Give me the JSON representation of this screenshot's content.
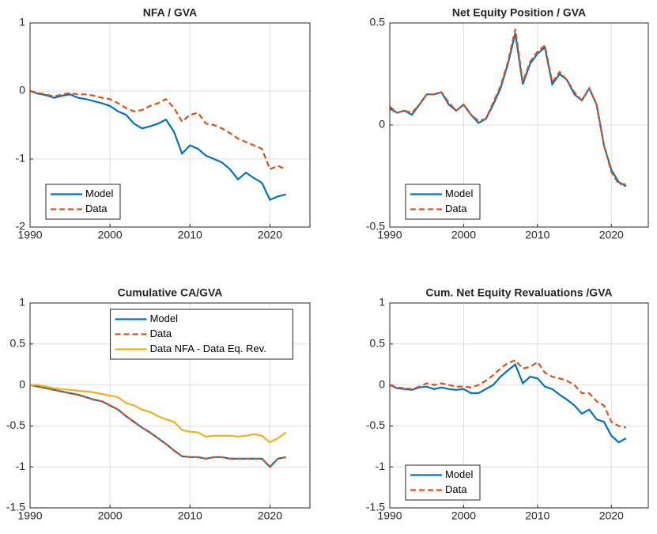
{
  "chart_data": [
    {
      "type": "line",
      "title": "NFA / GVA",
      "legend": "southwest",
      "grid": true,
      "xlim": [
        1990,
        2025
      ],
      "xticks": [
        1990,
        2000,
        2010,
        2020
      ],
      "ylim": [
        -2,
        1
      ],
      "yticks": [
        -2,
        -1,
        0,
        1
      ],
      "x": [
        1990,
        1991,
        1992,
        1993,
        1994,
        1995,
        1996,
        1997,
        1998,
        1999,
        2000,
        2001,
        2002,
        2003,
        2004,
        2005,
        2006,
        2007,
        2008,
        2009,
        2010,
        2011,
        2012,
        2013,
        2014,
        2015,
        2016,
        2017,
        2018,
        2019,
        2020,
        2021,
        2022
      ],
      "series": [
        {
          "name": "Model",
          "color": "#0072BD",
          "dash": false,
          "values": [
            0,
            -0.04,
            -0.06,
            -0.1,
            -0.07,
            -0.05,
            -0.1,
            -0.12,
            -0.15,
            -0.18,
            -0.22,
            -0.3,
            -0.35,
            -0.48,
            -0.55,
            -0.52,
            -0.48,
            -0.42,
            -0.6,
            -0.92,
            -0.8,
            -0.85,
            -0.95,
            -1.0,
            -1.05,
            -1.15,
            -1.3,
            -1.2,
            -1.28,
            -1.35,
            -1.6,
            -1.55,
            -1.52
          ]
        },
        {
          "name": "Data",
          "color": "#D95319",
          "dash": true,
          "values": [
            0,
            -0.03,
            -0.05,
            -0.08,
            -0.05,
            -0.03,
            -0.05,
            -0.05,
            -0.07,
            -0.1,
            -0.12,
            -0.18,
            -0.25,
            -0.3,
            -0.28,
            -0.22,
            -0.18,
            -0.12,
            -0.25,
            -0.45,
            -0.35,
            -0.32,
            -0.48,
            -0.5,
            -0.55,
            -0.62,
            -0.7,
            -0.75,
            -0.8,
            -0.85,
            -1.15,
            -1.1,
            -1.15
          ]
        }
      ]
    },
    {
      "type": "line",
      "title": "Net Equity Position / GVA",
      "legend": "southwest",
      "grid": true,
      "xlim": [
        1990,
        2025
      ],
      "xticks": [
        1990,
        2000,
        2010,
        2020
      ],
      "ylim": [
        -0.5,
        0.5
      ],
      "yticks": [
        -0.5,
        0,
        0.5
      ],
      "x": [
        1990,
        1991,
        1992,
        1993,
        1994,
        1995,
        1996,
        1997,
        1998,
        1999,
        2000,
        2001,
        2002,
        2003,
        2004,
        2005,
        2006,
        2007,
        2008,
        2009,
        2010,
        2011,
        2012,
        2013,
        2014,
        2015,
        2016,
        2017,
        2018,
        2019,
        2020,
        2021,
        2022
      ],
      "series": [
        {
          "name": "Model",
          "color": "#0072BD",
          "dash": false,
          "values": [
            0.08,
            0.06,
            0.07,
            0.05,
            0.1,
            0.15,
            0.15,
            0.16,
            0.1,
            0.07,
            0.1,
            0.05,
            0.01,
            0.03,
            0.1,
            0.18,
            0.3,
            0.45,
            0.2,
            0.3,
            0.35,
            0.38,
            0.2,
            0.25,
            0.22,
            0.15,
            0.12,
            0.18,
            0.1,
            -0.1,
            -0.22,
            -0.28,
            -0.3
          ]
        },
        {
          "name": "Data",
          "color": "#D95319",
          "dash": true,
          "values": [
            0.09,
            0.06,
            0.07,
            0.06,
            0.1,
            0.15,
            0.15,
            0.16,
            0.11,
            0.07,
            0.1,
            0.05,
            0.02,
            0.03,
            0.11,
            0.19,
            0.31,
            0.47,
            0.21,
            0.31,
            0.36,
            0.39,
            0.21,
            0.26,
            0.22,
            0.16,
            0.12,
            0.18,
            0.1,
            -0.1,
            -0.23,
            -0.29,
            -0.29
          ]
        }
      ]
    },
    {
      "type": "line",
      "title": "Cumulative CA/GVA",
      "legend": "north",
      "grid": true,
      "xlim": [
        1990,
        2025
      ],
      "xticks": [
        1990,
        2000,
        2010,
        2020
      ],
      "ylim": [
        -1.5,
        1
      ],
      "yticks": [
        -1.5,
        -1,
        -0.5,
        0,
        0.5,
        1
      ],
      "x": [
        1990,
        1991,
        1992,
        1993,
        1994,
        1995,
        1996,
        1997,
        1998,
        1999,
        2000,
        2001,
        2002,
        2003,
        2004,
        2005,
        2006,
        2007,
        2008,
        2009,
        2010,
        2011,
        2012,
        2013,
        2014,
        2015,
        2016,
        2017,
        2018,
        2019,
        2020,
        2021,
        2022
      ],
      "series": [
        {
          "name": "Model",
          "color": "#0072BD",
          "dash": false,
          "values": [
            0,
            -0.02,
            -0.04,
            -0.06,
            -0.08,
            -0.1,
            -0.12,
            -0.15,
            -0.18,
            -0.2,
            -0.25,
            -0.3,
            -0.38,
            -0.45,
            -0.52,
            -0.58,
            -0.65,
            -0.72,
            -0.8,
            -0.87,
            -0.88,
            -0.88,
            -0.9,
            -0.88,
            -0.88,
            -0.9,
            -0.9,
            -0.9,
            -0.9,
            -0.9,
            -1.0,
            -0.9,
            -0.88
          ]
        },
        {
          "name": "Data",
          "color": "#D95319",
          "dash": true,
          "values": [
            0,
            -0.02,
            -0.04,
            -0.06,
            -0.08,
            -0.1,
            -0.12,
            -0.15,
            -0.18,
            -0.2,
            -0.25,
            -0.3,
            -0.38,
            -0.45,
            -0.52,
            -0.58,
            -0.65,
            -0.72,
            -0.8,
            -0.87,
            -0.88,
            -0.88,
            -0.9,
            -0.88,
            -0.88,
            -0.9,
            -0.9,
            -0.9,
            -0.9,
            -0.9,
            -1.0,
            -0.9,
            -0.88
          ]
        },
        {
          "name": "Data NFA - Data Eq. Rev.",
          "color": "#EDB120",
          "dash": false,
          "values": [
            0,
            0,
            -0.02,
            -0.04,
            -0.05,
            -0.06,
            -0.07,
            -0.08,
            -0.09,
            -0.11,
            -0.13,
            -0.15,
            -0.22,
            -0.25,
            -0.3,
            -0.33,
            -0.38,
            -0.42,
            -0.45,
            -0.55,
            -0.57,
            -0.58,
            -0.63,
            -0.62,
            -0.62,
            -0.62,
            -0.63,
            -0.62,
            -0.6,
            -0.62,
            -0.7,
            -0.65,
            -0.58
          ]
        }
      ]
    },
    {
      "type": "line",
      "title": "Cum. Net Equity Revaluations /GVA",
      "legend": "southwest",
      "grid": true,
      "xlim": [
        1990,
        2025
      ],
      "xticks": [
        1990,
        2000,
        2010,
        2020
      ],
      "ylim": [
        -1.5,
        1
      ],
      "yticks": [
        -1.5,
        -1,
        -0.5,
        0,
        0.5,
        1
      ],
      "x": [
        1990,
        1991,
        1992,
        1993,
        1994,
        1995,
        1996,
        1997,
        1998,
        1999,
        2000,
        2001,
        2002,
        2003,
        2004,
        2005,
        2006,
        2007,
        2008,
        2009,
        2010,
        2011,
        2012,
        2013,
        2014,
        2015,
        2016,
        2017,
        2018,
        2019,
        2020,
        2021,
        2022
      ],
      "series": [
        {
          "name": "Model",
          "color": "#0072BD",
          "dash": false,
          "values": [
            0,
            -0.04,
            -0.05,
            -0.06,
            -0.03,
            -0.02,
            -0.05,
            -0.03,
            -0.05,
            -0.06,
            -0.05,
            -0.1,
            -0.1,
            -0.05,
            0,
            0.1,
            0.18,
            0.25,
            0.02,
            0.1,
            0.08,
            -0.02,
            -0.05,
            -0.12,
            -0.18,
            -0.25,
            -0.35,
            -0.3,
            -0.42,
            -0.45,
            -0.62,
            -0.7,
            -0.65
          ]
        },
        {
          "name": "Data",
          "color": "#D95319",
          "dash": true,
          "values": [
            0,
            -0.03,
            -0.04,
            -0.05,
            -0.02,
            0.02,
            0,
            0.02,
            0,
            -0.02,
            -0.02,
            -0.03,
            0,
            0.05,
            0.12,
            0.2,
            0.27,
            0.3,
            0.2,
            0.22,
            0.28,
            0.15,
            0.1,
            0.08,
            0.05,
            0,
            -0.1,
            -0.1,
            -0.2,
            -0.25,
            -0.45,
            -0.5,
            -0.52
          ]
        }
      ]
    }
  ]
}
